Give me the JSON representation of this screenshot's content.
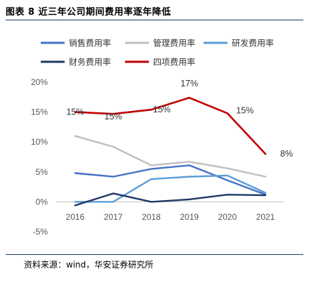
{
  "figure": {
    "title": "图表 8 近三年公司期间费用率逐年降低",
    "source": "资料来源：wind，华安证券研究所"
  },
  "chart_data": {
    "type": "line",
    "title": "",
    "xlabel": "",
    "ylabel": "",
    "x": [
      "2016",
      "2017",
      "2018",
      "2019",
      "2020",
      "2021"
    ],
    "ylim": [
      -5,
      20
    ],
    "yticks": [
      "-5%",
      "0%",
      "5%",
      "10%",
      "15%",
      "20%"
    ],
    "ytick_values": [
      -5,
      0,
      5,
      10,
      15,
      20
    ],
    "grid": false,
    "legend_position": "top",
    "series": [
      {
        "name": "销售费用率",
        "color": "#4472c4",
        "values": [
          4.8,
          4.2,
          5.5,
          6.1,
          3.6,
          1.2
        ]
      },
      {
        "name": "管理费用率",
        "color": "#bfbfbf",
        "values": [
          11.0,
          9.2,
          6.1,
          6.7,
          5.6,
          4.2
        ]
      },
      {
        "name": "研发费用率",
        "color": "#5b9bd5",
        "values": [
          0.0,
          0.0,
          3.8,
          4.2,
          4.4,
          1.5
        ]
      },
      {
        "name": "财务费用率",
        "color": "#1f3864",
        "values": [
          -0.6,
          1.4,
          0.0,
          0.4,
          1.2,
          1.1
        ]
      },
      {
        "name": "四项费用率",
        "color": "#c00000",
        "values": [
          15.0,
          14.7,
          15.4,
          17.4,
          14.8,
          8.0
        ]
      }
    ],
    "data_labels": {
      "series": "四项费用率",
      "labels": [
        "15%",
        "15%",
        "15%",
        "17%",
        "15%",
        "8%"
      ]
    }
  }
}
